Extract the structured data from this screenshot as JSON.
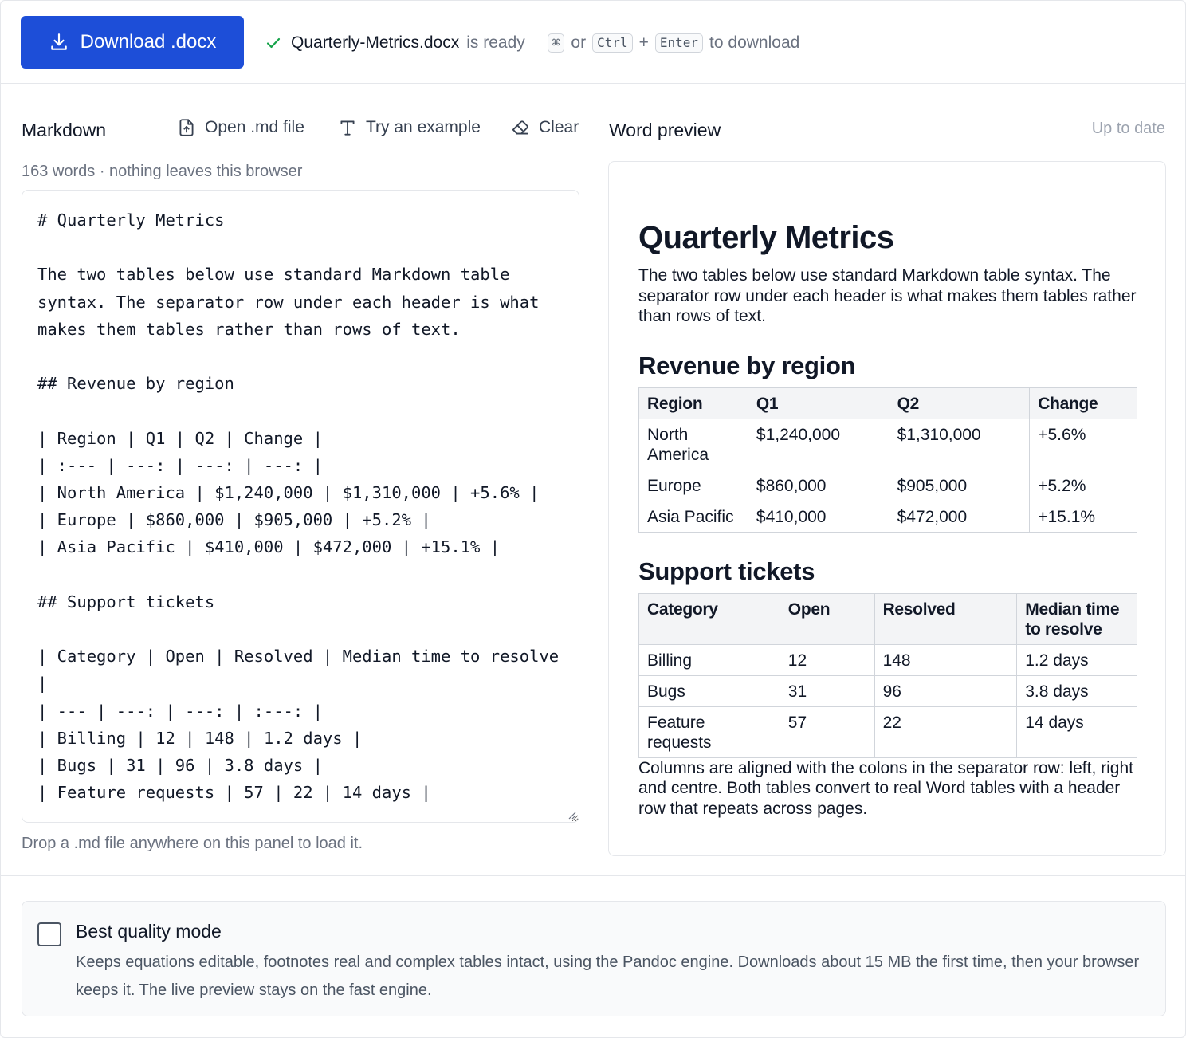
{
  "topbar": {
    "download_label": "Download .docx",
    "status_filename": "Quarterly-Metrics.docx",
    "status_text": "is ready",
    "shortcut_key_cmd": "⌘",
    "shortcut_or": "or",
    "shortcut_key_ctrl": "Ctrl",
    "shortcut_plus": "+",
    "shortcut_key_enter": "Enter",
    "shortcut_suffix": "to download"
  },
  "markdown_pane": {
    "title": "Markdown",
    "open_label": "Open .md file",
    "example_label": "Try an example",
    "clear_label": "Clear",
    "meta": "163 words · nothing leaves this browser",
    "editor_value": "# Quarterly Metrics\n\nThe two tables below use standard Markdown table syntax. The separator row under each header is what makes them tables rather than rows of text.\n\n## Revenue by region\n\n| Region | Q1 | Q2 | Change |\n| :--- | ---: | ---: | ---: |\n| North America | $1,240,000 | $1,310,000 | +5.6% |\n| Europe | $860,000 | $905,000 | +5.2% |\n| Asia Pacific | $410,000 | $472,000 | +15.1% |\n\n## Support tickets\n\n| Category | Open | Resolved | Median time to resolve |\n| --- | ---: | ---: | :---: |\n| Billing | 12 | 148 | 1.2 days |\n| Bugs | 31 | 96 | 3.8 days |\n| Feature requests | 57 | 22 | 14 days |",
    "drop_hint": "Drop a .md file anywhere on this panel to load it."
  },
  "preview_pane": {
    "title": "Word preview",
    "status": "Up to date",
    "doc": {
      "h1": "Quarterly Metrics",
      "intro": "The two tables below use standard Markdown table syntax. The separator row under each header is what makes them ta­bles rather than rows of text.",
      "h2_revenue": "Revenue by region",
      "revenue_headers": [
        "Region",
        "Q1",
        "Q2",
        "Change"
      ],
      "revenue_rows": [
        [
          "North America",
          "$1,240,000",
          "$1,310,000",
          "+5.6%"
        ],
        [
          "Europe",
          "$860,000",
          "$905,000",
          "+5.2%"
        ],
        [
          "Asia Pacific",
          "$410,000",
          "$472,000",
          "+15.1%"
        ]
      ],
      "h2_support": "Support tickets",
      "support_headers": [
        "Category",
        "Open",
        "Resolved",
        "Median time to resolve"
      ],
      "support_rows": [
        [
          "Billing",
          "12",
          "148",
          "1.2 days"
        ],
        [
          "Bugs",
          "31",
          "96",
          "3.8 days"
        ],
        [
          "Feature requests",
          "57",
          "22",
          "14 days"
        ]
      ],
      "closing": "Columns are aligned with the colons in the separator row: left, right and centre. Both tables convert to real Word tables with a header row that repeats across pages."
    }
  },
  "quality": {
    "checked": false,
    "title": "Best quality mode",
    "description": "Keeps equations editable, footnotes real and complex tables intact, using the Pandoc engine. Downloads about 15 MB the first time, then your browser keeps it. The live preview stays on the fast engine."
  },
  "colors": {
    "primary": "#1d4ed8",
    "success": "#16a34a",
    "muted_text": "#6b7280",
    "border": "#e5e7eb",
    "table_header_bg": "#f3f4f6"
  },
  "icons": {
    "download": "download-icon",
    "check": "check-icon",
    "open_file": "file-upload-icon",
    "example": "text-icon",
    "clear": "eraser-icon"
  }
}
